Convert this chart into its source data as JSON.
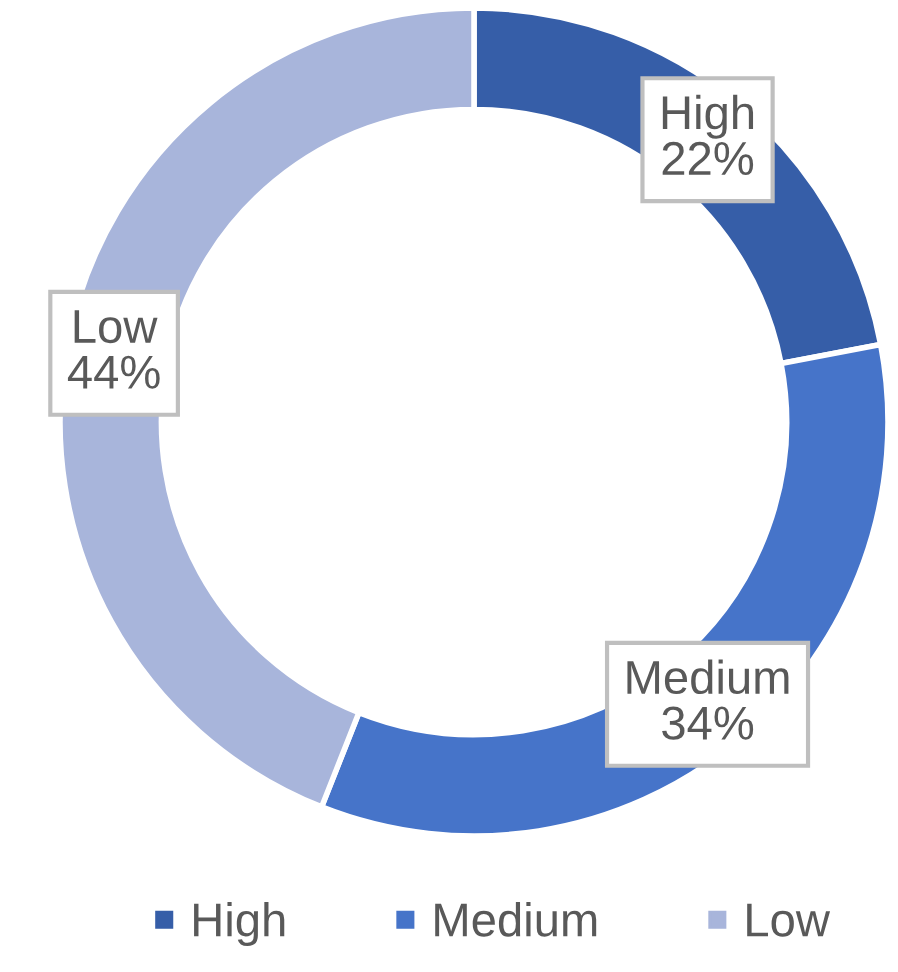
{
  "chart_data": {
    "type": "donut",
    "categories": [
      "High",
      "Medium",
      "Low"
    ],
    "values": [
      22,
      34,
      44
    ],
    "colors": [
      "#365ea8",
      "#4674c9",
      "#a8b5db"
    ],
    "value_labels": [
      "22%",
      "34%",
      "44%"
    ],
    "legend": "bottom"
  }
}
